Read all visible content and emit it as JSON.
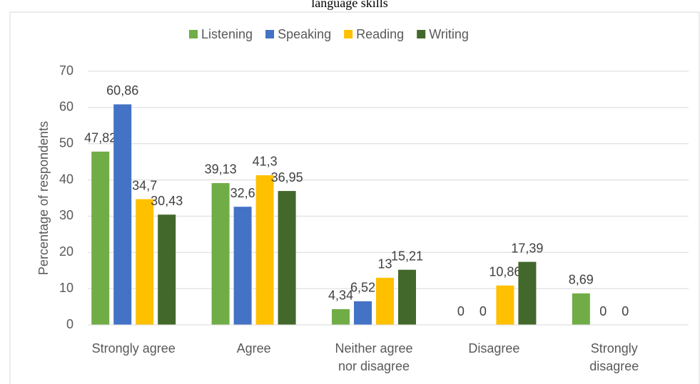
{
  "chart_data": {
    "type": "bar",
    "title": "language skills",
    "y_label": "Percentage of respondents",
    "categories": [
      "Strongly agree",
      "Agree",
      "Neither agree nor disagree",
      "Disagree",
      "Strongly disagree"
    ],
    "series": [
      {
        "name": "Listening",
        "color": "#70ad47",
        "values": [
          47.82,
          39.13,
          4.34,
          0,
          8.69
        ],
        "value_labels": [
          "47,82",
          "39,13",
          "4,34",
          "0",
          "8,69"
        ]
      },
      {
        "name": "Speaking",
        "color": "#4472c4",
        "values": [
          60.86,
          32.6,
          6.52,
          0,
          0
        ],
        "value_labels": [
          "60,86",
          "32,6",
          "6,52",
          "0",
          "0"
        ]
      },
      {
        "name": "Reading",
        "color": "#ffc000",
        "values": [
          34.7,
          41.3,
          13,
          10.86,
          0
        ],
        "value_labels": [
          "34,7",
          "41,3",
          "13",
          "10,86",
          "0"
        ]
      },
      {
        "name": "Writing",
        "color": "#43682b",
        "values": [
          30.43,
          36.95,
          15.21,
          17.39,
          null
        ],
        "value_labels": [
          "30,43",
          "36,95",
          "15,21",
          "17,39",
          null
        ]
      }
    ],
    "ylim": [
      0,
      70
    ],
    "yticks": [
      0,
      10,
      20,
      30,
      40,
      50,
      60,
      70
    ],
    "grid": true,
    "legend": "top"
  }
}
